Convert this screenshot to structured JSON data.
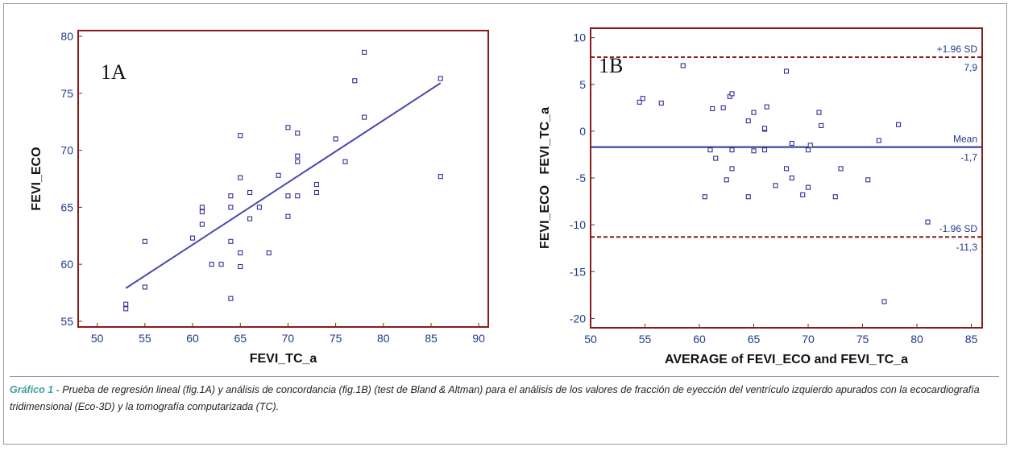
{
  "colors": {
    "axis_frame": "#8b1a1a",
    "points": "#2e3192",
    "regression_line": "#4b4bb0",
    "mean_line": "#2e3192",
    "sd_lines": "#8b1a1a",
    "tick_text": "#1f3b8a",
    "caption_lead": "#3a9fa3"
  },
  "caption": {
    "lead": "Gráfico 1 -",
    "text": " Prueba de regresión lineal (fig.1A) y análisis de concordancia (fig.1B) (test de Bland & Altman) para el análisis de los valores de fracción de eyección del ventrículo izquierdo apurados con la ecocardiografía tridimensional (Eco-3D) y la tomografía computarizada (TC)."
  },
  "chart_data": [
    {
      "type": "scatter",
      "panel_tag": "1A",
      "xlabel": "FEVI_TC_a",
      "ylabel": "FEVI_ECO",
      "xlim": [
        48,
        91
      ],
      "ylim": [
        54.5,
        80.5
      ],
      "x_ticks": [
        "50",
        "55",
        "60",
        "65",
        "70",
        "75",
        "80",
        "85",
        "90"
      ],
      "y_ticks": [
        "55",
        "60",
        "65",
        "70",
        "75",
        "80"
      ],
      "grid": false,
      "points": [
        {
          "x": 53,
          "y": 56.5
        },
        {
          "x": 53,
          "y": 56.1
        },
        {
          "x": 55,
          "y": 58
        },
        {
          "x": 55,
          "y": 62
        },
        {
          "x": 60,
          "y": 62.3
        },
        {
          "x": 61,
          "y": 65
        },
        {
          "x": 61,
          "y": 64.6
        },
        {
          "x": 61,
          "y": 63.5
        },
        {
          "x": 62,
          "y": 60
        },
        {
          "x": 63,
          "y": 60
        },
        {
          "x": 64,
          "y": 66
        },
        {
          "x": 64,
          "y": 65
        },
        {
          "x": 64,
          "y": 62
        },
        {
          "x": 64,
          "y": 57
        },
        {
          "x": 65,
          "y": 71.3
        },
        {
          "x": 65,
          "y": 67.6
        },
        {
          "x": 65,
          "y": 61
        },
        {
          "x": 65,
          "y": 59.8
        },
        {
          "x": 66,
          "y": 66.3
        },
        {
          "x": 66,
          "y": 64
        },
        {
          "x": 67,
          "y": 65
        },
        {
          "x": 68,
          "y": 61
        },
        {
          "x": 69,
          "y": 67.8
        },
        {
          "x": 70,
          "y": 72
        },
        {
          "x": 70,
          "y": 66
        },
        {
          "x": 70,
          "y": 64.2
        },
        {
          "x": 71,
          "y": 71.5
        },
        {
          "x": 71,
          "y": 69.5
        },
        {
          "x": 71,
          "y": 69
        },
        {
          "x": 71,
          "y": 66
        },
        {
          "x": 73,
          "y": 67
        },
        {
          "x": 73,
          "y": 66.3
        },
        {
          "x": 75,
          "y": 71
        },
        {
          "x": 76,
          "y": 69
        },
        {
          "x": 77,
          "y": 76.1
        },
        {
          "x": 78,
          "y": 78.6
        },
        {
          "x": 78,
          "y": 72.9
        },
        {
          "x": 86,
          "y": 76.3
        },
        {
          "x": 86,
          "y": 67.7
        }
      ],
      "regression_line": {
        "x": [
          53,
          86
        ],
        "y": [
          57.9,
          75.9
        ]
      }
    },
    {
      "type": "scatter",
      "panel_tag": "1B",
      "xlabel": "AVERAGE of FEVI_ECO and FEVI_TC_a",
      "ylabel": "FEVI_ECO   FEVI_TC_a",
      "xlim": [
        50,
        86
      ],
      "ylim": [
        -21,
        11
      ],
      "x_ticks": [
        "50",
        "55",
        "60",
        "65",
        "70",
        "75",
        "80",
        "85"
      ],
      "y_ticks": [
        "-20",
        "-15",
        "-10",
        "-5",
        "0",
        "5",
        "10"
      ],
      "grid": false,
      "points": [
        {
          "x": 54.5,
          "y": 3.1
        },
        {
          "x": 54.8,
          "y": 3.5
        },
        {
          "x": 56.5,
          "y": 3
        },
        {
          "x": 58.5,
          "y": 7
        },
        {
          "x": 60.5,
          "y": -7
        },
        {
          "x": 61,
          "y": -2
        },
        {
          "x": 61.2,
          "y": 2.4
        },
        {
          "x": 61.5,
          "y": -2.9
        },
        {
          "x": 62.2,
          "y": 2.5
        },
        {
          "x": 62.5,
          "y": -5.2
        },
        {
          "x": 62.8,
          "y": 3.7
        },
        {
          "x": 63,
          "y": 4
        },
        {
          "x": 63,
          "y": -2
        },
        {
          "x": 63,
          "y": -4
        },
        {
          "x": 64.5,
          "y": 1.1
        },
        {
          "x": 64.5,
          "y": -7
        },
        {
          "x": 65,
          "y": 2
        },
        {
          "x": 65,
          "y": -2.1
        },
        {
          "x": 66,
          "y": 0.2
        },
        {
          "x": 66,
          "y": 0.3
        },
        {
          "x": 66,
          "y": -2
        },
        {
          "x": 66.2,
          "y": 2.6
        },
        {
          "x": 67,
          "y": -5.8
        },
        {
          "x": 68,
          "y": -4
        },
        {
          "x": 68,
          "y": 6.4
        },
        {
          "x": 68.5,
          "y": -1.3
        },
        {
          "x": 68.5,
          "y": -5
        },
        {
          "x": 69.5,
          "y": -6.8
        },
        {
          "x": 70,
          "y": -2
        },
        {
          "x": 70,
          "y": -6
        },
        {
          "x": 70.2,
          "y": -1.5
        },
        {
          "x": 71,
          "y": 2
        },
        {
          "x": 71.2,
          "y": 0.6
        },
        {
          "x": 72.5,
          "y": -7
        },
        {
          "x": 73,
          "y": -4
        },
        {
          "x": 75.5,
          "y": -5.2
        },
        {
          "x": 76.5,
          "y": -1
        },
        {
          "x": 77,
          "y": -18.2
        },
        {
          "x": 78.3,
          "y": 0.7
        },
        {
          "x": 81,
          "y": -9.7
        }
      ],
      "reference_lines": [
        {
          "name": "+1.96 SD",
          "value": 7.9,
          "value_label": "7,9",
          "style": "dashed"
        },
        {
          "name": "Mean",
          "value": -1.7,
          "value_label": "-1,7",
          "style": "solid"
        },
        {
          "name": "-1.96 SD",
          "value": -11.3,
          "value_label": "-11,3",
          "style": "dashed"
        }
      ]
    }
  ]
}
